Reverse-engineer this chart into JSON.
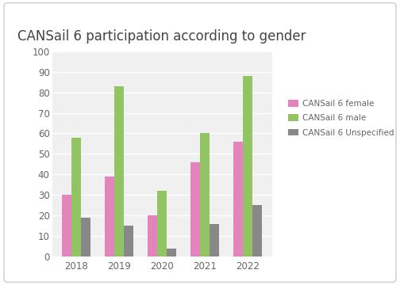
{
  "title": "CANSail 6 participation according to gender",
  "years": [
    "2018",
    "2019",
    "2020",
    "2021",
    "2022"
  ],
  "female": [
    30,
    39,
    20,
    46,
    56
  ],
  "male": [
    58,
    83,
    32,
    60,
    88
  ],
  "unspecified": [
    19,
    15,
    4,
    16,
    25
  ],
  "female_color": "#e384bc",
  "male_color": "#93c464",
  "unspecified_color": "#888888",
  "legend_labels": [
    "CANSail 6 female",
    "CANSail 6 male",
    "CANSail 6 Unspecified"
  ],
  "ylim": [
    0,
    100
  ],
  "yticks": [
    0,
    10,
    20,
    30,
    40,
    50,
    60,
    70,
    80,
    90,
    100
  ],
  "plot_bg": "#f0f0f0",
  "figure_bg": "#ffffff",
  "border_color": "#cccccc",
  "bar_width": 0.22,
  "title_fontsize": 12,
  "tick_fontsize": 8.5,
  "legend_fontsize": 7.5
}
